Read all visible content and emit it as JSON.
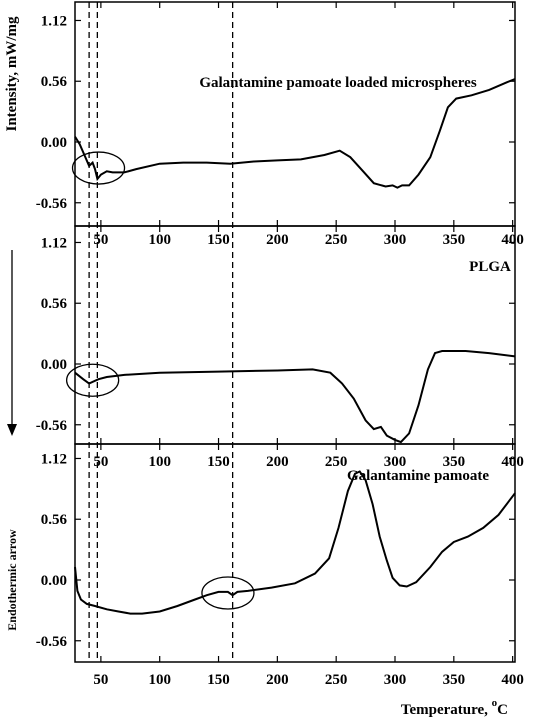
{
  "chart_data": {
    "type": "line",
    "xlabel": "Temperature, °C",
    "xlabel_main": "Temperature, ",
    "xlabel_sup": "o",
    "xlabel_unit": "C",
    "ylabel": "Intensity, mW/mg",
    "side_label": "Endothermic arrow",
    "xlim": [
      28,
      402
    ],
    "ylim": [
      -0.78,
      1.4
    ],
    "x_ticks": [
      50,
      100,
      150,
      200,
      250,
      300,
      350,
      400
    ],
    "y_ticks": [
      "1.12",
      "0.56",
      "0.00",
      "-0.56"
    ],
    "reference_lines_x": [
      40,
      47,
      162
    ],
    "panels": [
      {
        "name": "Galantamine pamoate loaded microspheres",
        "tick_labels_inside": false,
        "circle": {
          "x": 48,
          "y": -0.24
        },
        "points": [
          [
            28,
            0.05
          ],
          [
            32,
            -0.02
          ],
          [
            36,
            -0.12
          ],
          [
            40,
            -0.22
          ],
          [
            43,
            -0.19
          ],
          [
            45,
            -0.25
          ],
          [
            47,
            -0.34
          ],
          [
            50,
            -0.3
          ],
          [
            55,
            -0.27
          ],
          [
            60,
            -0.28
          ],
          [
            70,
            -0.28
          ],
          [
            80,
            -0.25
          ],
          [
            100,
            -0.2
          ],
          [
            120,
            -0.19
          ],
          [
            140,
            -0.19
          ],
          [
            160,
            -0.2
          ],
          [
            180,
            -0.18
          ],
          [
            200,
            -0.17
          ],
          [
            220,
            -0.16
          ],
          [
            240,
            -0.12
          ],
          [
            253,
            -0.08
          ],
          [
            262,
            -0.14
          ],
          [
            272,
            -0.26
          ],
          [
            282,
            -0.38
          ],
          [
            292,
            -0.41
          ],
          [
            298,
            -0.4
          ],
          [
            302,
            -0.42
          ],
          [
            306,
            -0.4
          ],
          [
            312,
            -0.4
          ],
          [
            320,
            -0.3
          ],
          [
            330,
            -0.14
          ],
          [
            338,
            0.1
          ],
          [
            345,
            0.32
          ],
          [
            352,
            0.4
          ],
          [
            365,
            0.43
          ],
          [
            380,
            0.48
          ],
          [
            395,
            0.55
          ],
          [
            402,
            0.58
          ]
        ]
      },
      {
        "name": "PLGA",
        "tick_labels_inside": true,
        "circle": {
          "x": 43,
          "y": -0.15
        },
        "points": [
          [
            28,
            -0.08
          ],
          [
            35,
            -0.14
          ],
          [
            40,
            -0.18
          ],
          [
            48,
            -0.14
          ],
          [
            55,
            -0.12
          ],
          [
            70,
            -0.1
          ],
          [
            100,
            -0.08
          ],
          [
            150,
            -0.07
          ],
          [
            200,
            -0.06
          ],
          [
            230,
            -0.05
          ],
          [
            245,
            -0.08
          ],
          [
            255,
            -0.18
          ],
          [
            265,
            -0.32
          ],
          [
            275,
            -0.52
          ],
          [
            282,
            -0.6
          ],
          [
            288,
            -0.58
          ],
          [
            293,
            -0.66
          ],
          [
            300,
            -0.7
          ],
          [
            305,
            -0.72
          ],
          [
            312,
            -0.64
          ],
          [
            320,
            -0.38
          ],
          [
            328,
            -0.05
          ],
          [
            334,
            0.1
          ],
          [
            340,
            0.12
          ],
          [
            360,
            0.12
          ],
          [
            380,
            0.1
          ],
          [
            402,
            0.07
          ]
        ]
      },
      {
        "name": "Galantamine pamoate",
        "tick_labels_inside": true,
        "circle": {
          "x": 158,
          "y": -0.12
        },
        "points": [
          [
            28,
            0.12
          ],
          [
            30,
            -0.1
          ],
          [
            33,
            -0.18
          ],
          [
            38,
            -0.22
          ],
          [
            45,
            -0.24
          ],
          [
            55,
            -0.27
          ],
          [
            65,
            -0.29
          ],
          [
            75,
            -0.31
          ],
          [
            85,
            -0.31
          ],
          [
            100,
            -0.29
          ],
          [
            115,
            -0.24
          ],
          [
            130,
            -0.18
          ],
          [
            140,
            -0.14
          ],
          [
            150,
            -0.11
          ],
          [
            158,
            -0.11
          ],
          [
            162,
            -0.14
          ],
          [
            166,
            -0.11
          ],
          [
            175,
            -0.1
          ],
          [
            195,
            -0.07
          ],
          [
            215,
            -0.03
          ],
          [
            232,
            0.06
          ],
          [
            244,
            0.2
          ],
          [
            252,
            0.48
          ],
          [
            260,
            0.82
          ],
          [
            266,
            0.98
          ],
          [
            270,
            1.0
          ],
          [
            275,
            0.92
          ],
          [
            281,
            0.7
          ],
          [
            287,
            0.4
          ],
          [
            293,
            0.18
          ],
          [
            298,
            0.02
          ],
          [
            304,
            -0.05
          ],
          [
            310,
            -0.06
          ],
          [
            318,
            -0.02
          ],
          [
            330,
            0.12
          ],
          [
            340,
            0.26
          ],
          [
            350,
            0.35
          ],
          [
            362,
            0.4
          ],
          [
            375,
            0.48
          ],
          [
            388,
            0.6
          ],
          [
            402,
            0.8
          ]
        ]
      }
    ]
  }
}
